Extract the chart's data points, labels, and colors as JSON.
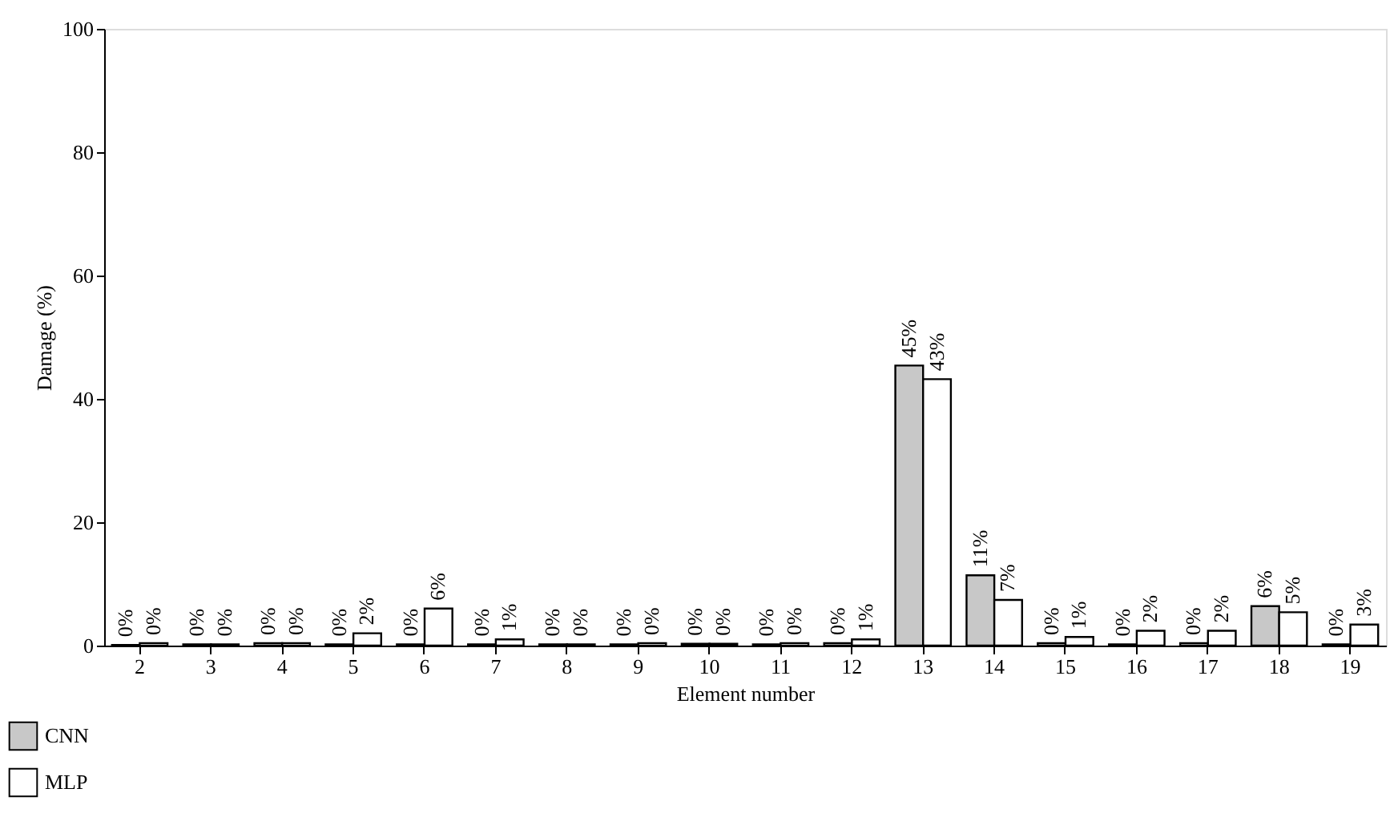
{
  "chart_data": {
    "type": "bar",
    "xlabel": "Element number",
    "ylabel": "Damage (%)",
    "categories": [
      "2",
      "3",
      "4",
      "5",
      "6",
      "7",
      "8",
      "9",
      "10",
      "11",
      "12",
      "13",
      "14",
      "15",
      "16",
      "17",
      "18",
      "19"
    ],
    "series": [
      {
        "name": "CNN",
        "color": "#c8c8c8",
        "values": [
          0.1,
          0.2,
          0.4,
          0.2,
          0.2,
          0.2,
          0.2,
          0.2,
          0.3,
          0.2,
          0.4,
          45.4,
          11.4,
          0.4,
          0.2,
          0.4,
          6.4,
          0.2
        ],
        "value_labels": [
          "0%",
          "0%",
          "0%",
          "0%",
          "0%",
          "0%",
          "0%",
          "0%",
          "0%",
          "0%",
          "0%",
          "45%",
          "11%",
          "0%",
          "0%",
          "0%",
          "6%",
          "0%"
        ]
      },
      {
        "name": "MLP",
        "color": "#ffffff",
        "values": [
          0.4,
          0.2,
          0.4,
          2.0,
          6.0,
          1.0,
          0.2,
          0.4,
          0.3,
          0.4,
          1.0,
          43.2,
          7.4,
          1.4,
          2.4,
          2.4,
          5.4,
          3.4
        ],
        "value_labels": [
          "0%",
          "0%",
          "0%",
          "2%",
          "6%",
          "1%",
          "0%",
          "0%",
          "0%",
          "0%",
          "1%",
          "43%",
          "7%",
          "1%",
          "2%",
          "2%",
          "5%",
          "3%"
        ]
      }
    ],
    "ylim": [
      0,
      100
    ],
    "yticks": [
      0,
      20,
      40,
      60,
      80,
      100
    ],
    "grid": false,
    "legend": "bottom left"
  }
}
